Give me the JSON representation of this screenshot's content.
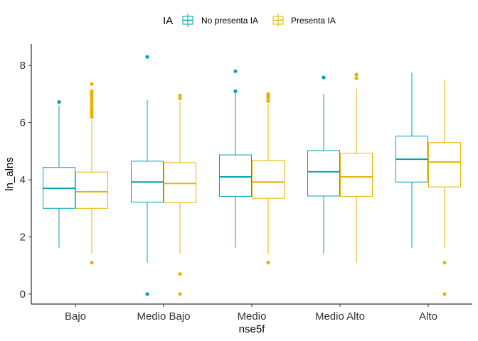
{
  "chart_data": {
    "type": "box",
    "xlabel": "nse5f",
    "ylabel": "ln_alns",
    "categories": [
      "Bajo",
      "Medio Bajo",
      "Medio",
      "Medio Alto",
      "Alto"
    ],
    "ylim": [
      -0.35,
      8.75
    ],
    "yticks": [
      0,
      2,
      4,
      6,
      8
    ],
    "grid": false,
    "legend": {
      "title": "IA",
      "position": "top",
      "entries": [
        "No presenta IA",
        "Presenta IA"
      ]
    },
    "series": [
      {
        "name": "No presenta IA",
        "color": "#00a3b0",
        "boxes": [
          {
            "whisker_low": 1.62,
            "q1": 3.0,
            "median": 3.7,
            "q3": 4.43,
            "whisker_high": 6.6,
            "outliers": [
              6.72
            ]
          },
          {
            "whisker_low": 1.1,
            "q1": 3.22,
            "median": 3.92,
            "q3": 4.65,
            "whisker_high": 6.8,
            "outliers": [
              8.3,
              0.0
            ]
          },
          {
            "whisker_low": 1.62,
            "q1": 3.42,
            "median": 4.1,
            "q3": 4.87,
            "whisker_high": 7.05,
            "outliers": [
              7.8,
              7.1
            ]
          },
          {
            "whisker_low": 1.4,
            "q1": 3.43,
            "median": 4.28,
            "q3": 5.02,
            "whisker_high": 7.0,
            "outliers": [
              7.58
            ]
          },
          {
            "whisker_low": 1.62,
            "q1": 3.92,
            "median": 4.72,
            "q3": 5.53,
            "whisker_high": 7.75,
            "outliers": []
          }
        ]
      },
      {
        "name": "Presenta IA",
        "color": "#e6b400",
        "boxes": [
          {
            "whisker_low": 1.4,
            "q1": 3.0,
            "median": 3.58,
            "q3": 4.27,
            "whisker_high": 6.1,
            "outliers": [
              7.35,
              7.1,
              7.0,
              6.95,
              6.85,
              6.75,
              6.65,
              6.55,
              6.45,
              6.4,
              6.35,
              6.3,
              6.2,
              1.1
            ]
          },
          {
            "whisker_low": 1.4,
            "q1": 3.2,
            "median": 3.87,
            "q3": 4.6,
            "whisker_high": 6.75,
            "outliers": [
              6.95,
              6.85,
              0.7,
              0.0
            ]
          },
          {
            "whisker_low": 1.4,
            "q1": 3.35,
            "median": 3.92,
            "q3": 4.68,
            "whisker_high": 6.65,
            "outliers": [
              7.0,
              6.95,
              6.9,
              6.85,
              6.75,
              1.1
            ]
          },
          {
            "whisker_low": 1.1,
            "q1": 3.42,
            "median": 4.1,
            "q3": 4.93,
            "whisker_high": 7.2,
            "outliers": [
              7.68,
              7.55
            ]
          },
          {
            "whisker_low": 1.62,
            "q1": 3.75,
            "median": 4.62,
            "q3": 5.3,
            "whisker_high": 7.5,
            "outliers": [
              1.1,
              0.0
            ]
          }
        ]
      }
    ]
  }
}
